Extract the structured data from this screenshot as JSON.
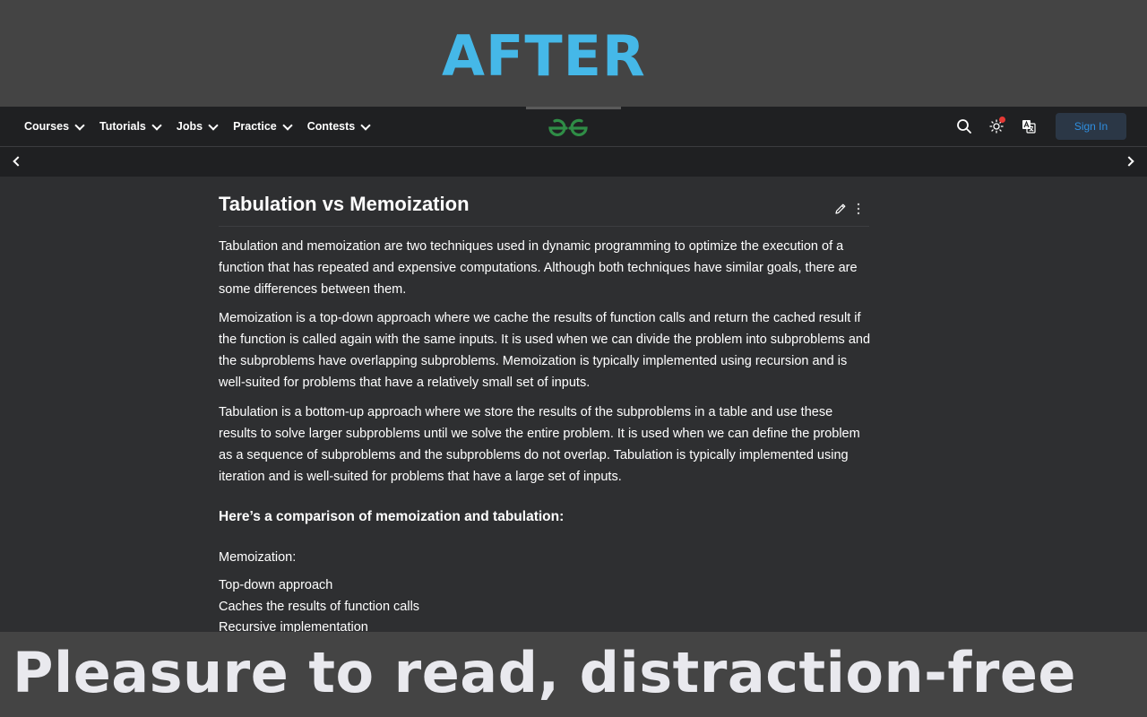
{
  "banner_top": {
    "text": "AFTER",
    "color": "#45b8e8"
  },
  "banner_bottom": {
    "text": "Pleasure to read, distraction-free"
  },
  "navbar": {
    "menu": [
      {
        "label": "Courses"
      },
      {
        "label": "Tutorials"
      },
      {
        "label": "Jobs"
      },
      {
        "label": "Practice"
      },
      {
        "label": "Contests"
      }
    ],
    "logo_icon": "geeksforgeeks-logo-icon",
    "logo_color": "#2f8d46",
    "search_icon": "search-icon",
    "theme_icon": "sun-icon",
    "theme_notification": true,
    "translate_icon": "translate-icon",
    "sign_in_label": "Sign In",
    "accent": "#2f8fe0"
  },
  "subbar": {
    "left_icon": "chevron-left-icon",
    "right_icon": "chevron-right-icon"
  },
  "article": {
    "title": "Tabulation vs Memoization",
    "edit_icon": "pencil-icon",
    "more_icon": "more-vertical-icon",
    "paragraphs": [
      "Tabulation and memoization are two techniques used in dynamic programming to optimize the execution of a function that has repeated and expensive computations. Although both techniques have similar goals, there are some differences between them.",
      "Memoization is a top-down approach where we cache the results of function calls and return the cached result if the function is called again with the same inputs. It is used when we can divide the problem into subproblems and the subproblems have overlapping subproblems. Memoization is typically implemented using recursion and is well-suited for problems that have a relatively small set of inputs.",
      "Tabulation is a bottom-up approach where we store the results of the subproblems in a table and use these results to solve larger subproblems until we solve the entire problem. It is used when we can define the problem as a sequence of subproblems and the subproblems do not overlap. Tabulation is typically implemented using iteration and is well-suited for problems that have a large set of inputs."
    ],
    "subheading": "Here’s a comparison of memoization and tabulation:",
    "memo_label": "Memoization:",
    "memo_points": [
      "Top-down approach",
      "Caches the results of function calls",
      "Recursive implementation"
    ]
  }
}
